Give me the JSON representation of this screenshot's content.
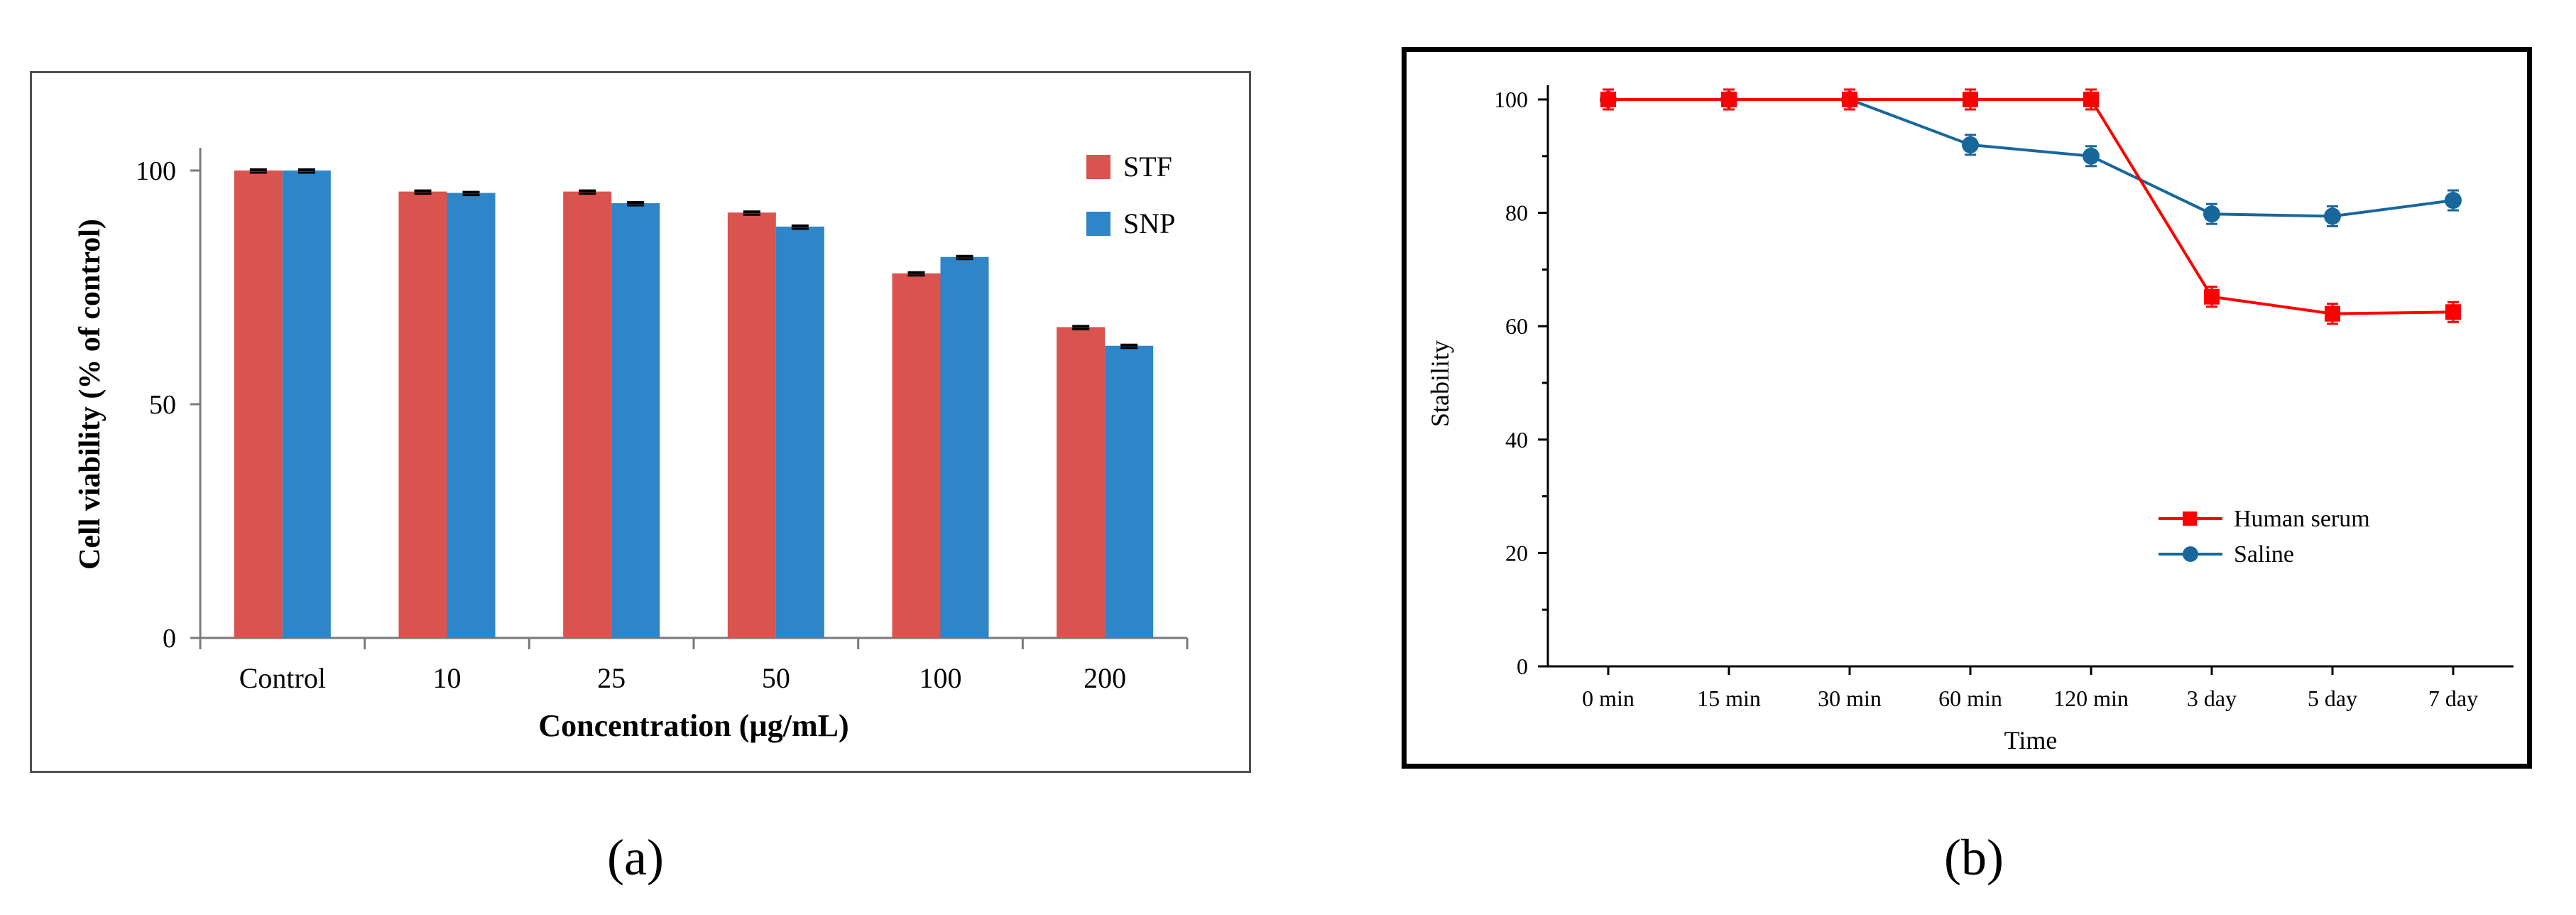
{
  "colors": {
    "stf": "#d9534f",
    "snp": "#2e86c8",
    "human_serum": "#ff0000",
    "saline": "#17679b"
  },
  "panel_labels": {
    "a": "(a)",
    "b": "(b)"
  },
  "chart_data": [
    {
      "type": "bar",
      "title": "",
      "xlabel": "Concentration (µg/mL)",
      "ylabel": "Cell viability  (% of control)",
      "categories": [
        "Control",
        "10",
        "25",
        "50",
        "100",
        "200"
      ],
      "yticks": [
        "0",
        "50",
        "100"
      ],
      "ylim": [
        0,
        100
      ],
      "series": [
        {
          "name": "STF",
          "values": [
            100,
            95.5,
            95.5,
            91,
            78,
            66.5
          ]
        },
        {
          "name": "SNP",
          "values": [
            100,
            95.2,
            93,
            88,
            81.5,
            62.5
          ]
        }
      ],
      "legend": "top-right"
    },
    {
      "type": "line",
      "title": "",
      "xlabel": "Time",
      "ylabel": "Stability",
      "categories": [
        "0 min",
        "15 min",
        "30 min",
        "60 min",
        "120 min",
        "3 day",
        "5 day",
        "7 day"
      ],
      "yticks": [
        "0",
        "20",
        "40",
        "60",
        "80",
        "100"
      ],
      "ylim": [
        0,
        100
      ],
      "series": [
        {
          "name": "Human serum",
          "values": [
            100,
            100,
            100,
            100,
            100,
            65.2,
            62.2,
            62.5
          ]
        },
        {
          "name": "Saline",
          "values": [
            100,
            100,
            100,
            92,
            90,
            79.8,
            79.4,
            82.2
          ]
        }
      ],
      "legend": "bottom-right"
    }
  ]
}
